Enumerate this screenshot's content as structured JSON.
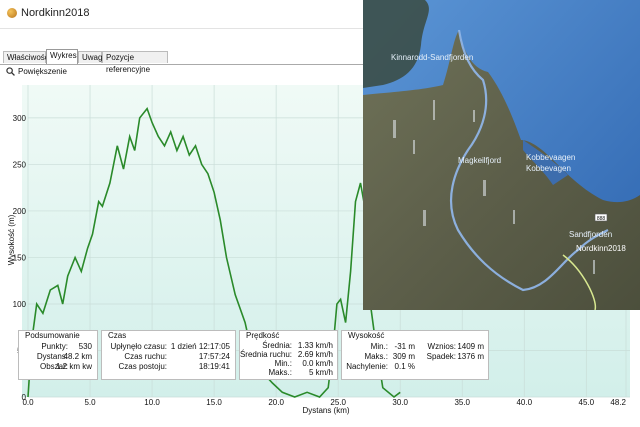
{
  "window": {
    "title": "Nordkinn2018"
  },
  "tabs": [
    {
      "label": "Właściwości",
      "active": false
    },
    {
      "label": "Wykres",
      "active": true
    },
    {
      "label": "Uwagi",
      "active": false
    },
    {
      "label": "Pozycje referencyjne",
      "active": false
    }
  ],
  "toolbar": {
    "zoom_label": "Powiększenie",
    "zoom_icon": "magnifier-icon"
  },
  "chart_data": {
    "type": "area",
    "xlabel": "Dystans  (km)",
    "ylabel": "Wysokość (m)",
    "xlim": [
      0,
      48.2
    ],
    "ylim": [
      0,
      330
    ],
    "x_ticks": [
      "0.0",
      "5.0",
      "10.0",
      "15.0",
      "20.0",
      "25.0",
      "30.0",
      "35.0",
      "40.0",
      "45.0",
      "48.2"
    ],
    "y_ticks": [
      "0",
      "50",
      "100",
      "150",
      "200",
      "250",
      "300"
    ],
    "grid": true,
    "colors": {
      "line": "#2a8a2a",
      "fill_top": "#f0faf6",
      "fill_bottom": "#d2efea"
    },
    "series": [
      {
        "x": [
          0,
          0.3,
          0.7,
          1.2,
          1.8,
          2.4,
          2.8,
          3.2,
          3.8,
          4.3,
          4.8,
          5.2,
          5.7,
          6.0,
          6.6,
          7.2,
          7.7,
          8.2,
          8.6,
          9.0,
          9.6,
          10.0,
          10.5,
          11.0,
          11.5,
          12.0,
          12.5,
          13.0,
          13.5,
          14.0,
          14.5,
          15.0,
          15.5,
          16.0,
          16.7,
          17.5,
          18.0,
          18.5,
          19.0,
          19.7,
          20.5,
          21.5,
          22.5,
          23.5,
          24.2,
          24.6,
          24.9,
          25.2,
          25.6,
          26.0,
          26.4,
          26.8,
          27.2,
          27.6,
          28.0,
          28.6,
          29.5,
          30.0
        ],
        "y": [
          0,
          60,
          100,
          90,
          115,
          120,
          100,
          130,
          150,
          135,
          160,
          175,
          210,
          205,
          230,
          270,
          245,
          280,
          265,
          300,
          310,
          295,
          280,
          270,
          285,
          265,
          280,
          260,
          270,
          250,
          240,
          220,
          190,
          150,
          110,
          80,
          50,
          30,
          25,
          15,
          5,
          0,
          5,
          0,
          10,
          55,
          100,
          105,
          80,
          135,
          210,
          230,
          200,
          100,
          60,
          10,
          0,
          5
        ]
      }
    ]
  },
  "map": {
    "labels": [
      "Kinnarodd-Sandfjorden",
      "Magkeilfjord",
      "Kobbevaagen",
      "Kobbevagen",
      "Sandfjorden",
      "Nordkinn2018"
    ],
    "road_badge": "888"
  },
  "summary": {
    "podsumowanie": {
      "title": "Podsumowanie",
      "rows": [
        {
          "label": "Punkty:",
          "value": "530"
        },
        {
          "label": "Dystans:",
          "value": "48.2 km"
        },
        {
          "label": "Obszar:",
          "value": "1.2 km kw"
        }
      ]
    },
    "czas": {
      "title": "Czas",
      "rows": [
        {
          "label": "Upłynęło czasu:",
          "value": "1 dzień 12:17:05"
        },
        {
          "label": "Czas ruchu:",
          "value": "17:57:24"
        },
        {
          "label": "Czas postoju:",
          "value": "18:19:41"
        }
      ]
    },
    "predkosc": {
      "title": "Prędkość",
      "rows": [
        {
          "label": "Średnia:",
          "value": "1.33 km/h"
        },
        {
          "label": "Średnia ruchu:",
          "value": "2.69 km/h"
        },
        {
          "label": "Min.:",
          "value": "0.0 km/h"
        },
        {
          "label": "Maks.:",
          "value": "5 km/h"
        }
      ]
    },
    "wysokosc": {
      "title": "Wysokość",
      "rows": [
        {
          "label": "Min.:",
          "value": "-31 m"
        },
        {
          "label": "Maks.:",
          "value": "309 m"
        },
        {
          "label": "Nachylenie:",
          "value": "0.1 %"
        }
      ],
      "rows2": [
        {
          "label": "Wznios:",
          "value": "1409 m"
        },
        {
          "label": "Spadek:",
          "value": "1376 m"
        }
      ]
    }
  }
}
